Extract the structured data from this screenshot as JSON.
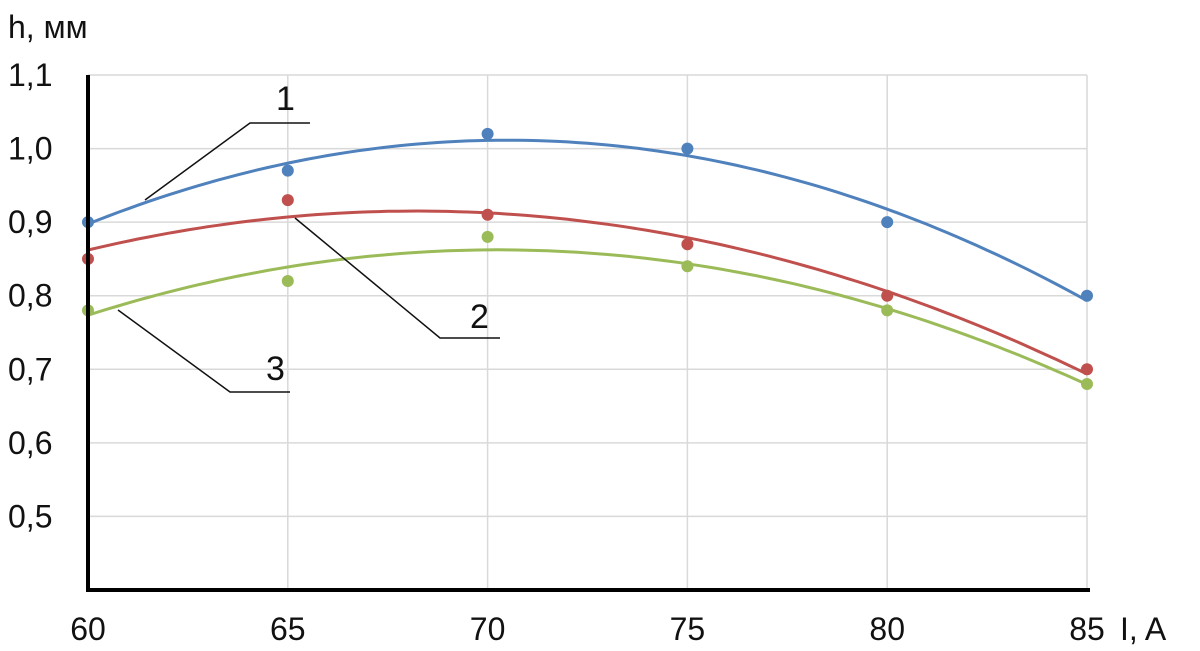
{
  "chart_data": {
    "type": "scatter",
    "ylabel": "h, мм",
    "xlabel": "I, A",
    "x": [
      60,
      65,
      70,
      75,
      80,
      85
    ],
    "xlim": [
      60,
      85
    ],
    "ylim": [
      0.4,
      1.1
    ],
    "x_ticks": [
      "60",
      "65",
      "70",
      "75",
      "80",
      "85"
    ],
    "y_ticks": [
      "0,5",
      "0,6",
      "0,7",
      "0,8",
      "0,9",
      "1,0",
      "1,1"
    ],
    "y_tick_values": [
      0.5,
      0.6,
      0.7,
      0.8,
      0.9,
      1.0,
      1.1
    ],
    "grid": true,
    "trendline": "polynomial",
    "series": [
      {
        "name": "1",
        "color": "#4f81bd",
        "values": [
          0.9,
          0.97,
          1.02,
          1.0,
          0.9,
          0.8
        ]
      },
      {
        "name": "2",
        "color": "#c0504d",
        "values": [
          0.85,
          0.93,
          0.91,
          0.87,
          0.8,
          0.7
        ]
      },
      {
        "name": "3",
        "color": "#9bbb59",
        "values": [
          0.78,
          0.82,
          0.88,
          0.84,
          0.78,
          0.68
        ]
      }
    ]
  }
}
